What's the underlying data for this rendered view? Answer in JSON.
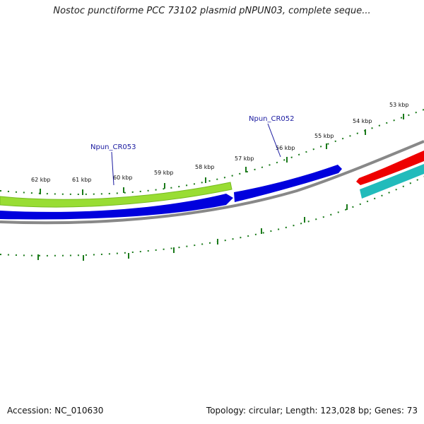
{
  "map": {
    "title": "Nostoc punctiforme PCC 73102 plasmid pNPUN03, complete seque...",
    "accession": "Accession: NC_010630",
    "summary": "Topology: circular; Length: 123,028 bp; Genes: 73",
    "ticks": [
      "62 kbp",
      "61 kbp",
      "60 kbp",
      "59 kbp",
      "58 kbp",
      "57 kbp",
      "56 kbp",
      "55 kbp",
      "54 kbp",
      "53 kbp"
    ],
    "feature_labels": [
      "Npun_CR053",
      "Npun_CR052"
    ],
    "colors": {
      "outer_ring": "#1a7a1a",
      "gene_green": "#99dd33",
      "gene_blue": "#0000dd",
      "gene_red": "#ee0000",
      "gene_cyan": "#22bbbb",
      "backbone": "#888888",
      "label": "#1a1aa0"
    }
  }
}
